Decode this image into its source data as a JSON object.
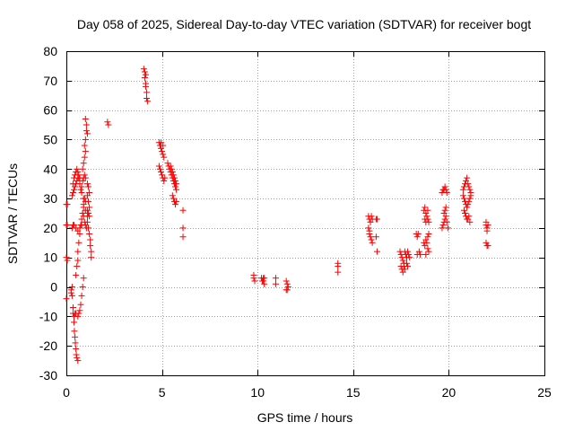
{
  "chart_data": {
    "type": "scatter",
    "title": "Day 058 of 2025, Sidereal Day-to-day VTEC variation (SDTVAR) for receiver bogt",
    "xlabel": "GPS time / hours",
    "ylabel": "SDTVAR / TECUs",
    "xlim": [
      0,
      25
    ],
    "ylim": [
      -30,
      80
    ],
    "xticks": [
      0,
      5,
      10,
      15,
      20,
      25
    ],
    "yticks": [
      -30,
      -20,
      -10,
      0,
      10,
      20,
      30,
      40,
      50,
      60,
      70,
      80
    ],
    "grid": true,
    "marker": "+",
    "colors": {
      "points": "#ff0000",
      "grid": "#a0a0a0",
      "axes": "#000000"
    },
    "series": [
      {
        "name": "SDTVAR",
        "points": [
          [
            0.0,
            28
          ],
          [
            0.05,
            28
          ],
          [
            0.0,
            21
          ],
          [
            0.05,
            21
          ],
          [
            0.0,
            10
          ],
          [
            0.05,
            9
          ],
          [
            0.0,
            -4
          ],
          [
            0.25,
            -1
          ],
          [
            0.25,
            -2
          ],
          [
            0.3,
            0
          ],
          [
            0.3,
            -3
          ],
          [
            0.35,
            -7
          ],
          [
            0.35,
            -9
          ],
          [
            0.4,
            -10
          ],
          [
            0.45,
            -9
          ],
          [
            0.4,
            -12
          ],
          [
            0.42,
            -15
          ],
          [
            0.45,
            -17
          ],
          [
            0.47,
            -19
          ],
          [
            0.5,
            -21
          ],
          [
            0.52,
            -23
          ],
          [
            0.55,
            -24
          ],
          [
            0.6,
            -25
          ],
          [
            0.5,
            -9
          ],
          [
            0.6,
            -10
          ],
          [
            0.65,
            -9
          ],
          [
            0.7,
            -8
          ],
          [
            0.75,
            -6
          ],
          [
            0.8,
            -3
          ],
          [
            0.85,
            0
          ],
          [
            0.9,
            3
          ],
          [
            0.5,
            4
          ],
          [
            0.55,
            7
          ],
          [
            0.6,
            9
          ],
          [
            0.6,
            12
          ],
          [
            0.65,
            15
          ],
          [
            0.7,
            18
          ],
          [
            0.75,
            21
          ],
          [
            0.8,
            23
          ],
          [
            0.85,
            25
          ],
          [
            0.9,
            27
          ],
          [
            0.95,
            30
          ],
          [
            0.3,
            20
          ],
          [
            0.35,
            21
          ],
          [
            0.4,
            21
          ],
          [
            0.5,
            20
          ],
          [
            0.6,
            19
          ],
          [
            0.7,
            20
          ],
          [
            0.8,
            21
          ],
          [
            0.3,
            31
          ],
          [
            0.35,
            32
          ],
          [
            0.4,
            33
          ],
          [
            0.45,
            34
          ],
          [
            0.5,
            35
          ],
          [
            0.55,
            36
          ],
          [
            0.6,
            37
          ],
          [
            0.65,
            38
          ],
          [
            0.7,
            37
          ],
          [
            0.35,
            35
          ],
          [
            0.4,
            37
          ],
          [
            0.45,
            38
          ],
          [
            0.5,
            39
          ],
          [
            0.55,
            40
          ],
          [
            0.6,
            39
          ],
          [
            0.65,
            37
          ],
          [
            0.7,
            35
          ],
          [
            0.75,
            33
          ],
          [
            0.8,
            34
          ],
          [
            0.85,
            36
          ],
          [
            0.9,
            37
          ],
          [
            0.95,
            38
          ],
          [
            1.0,
            37
          ],
          [
            0.8,
            32
          ],
          [
            0.9,
            30
          ],
          [
            1.0,
            29
          ],
          [
            0.85,
            25
          ],
          [
            0.9,
            24
          ],
          [
            0.95,
            22
          ],
          [
            1.0,
            21
          ],
          [
            1.05,
            20
          ],
          [
            0.9,
            28
          ],
          [
            1.0,
            26
          ],
          [
            1.1,
            24
          ],
          [
            0.85,
            40
          ],
          [
            0.9,
            42
          ],
          [
            0.95,
            44
          ],
          [
            1.0,
            57
          ],
          [
            1.05,
            55
          ],
          [
            1.05,
            53
          ],
          [
            1.1,
            52
          ],
          [
            1.0,
            50
          ],
          [
            0.95,
            48
          ],
          [
            1.0,
            46
          ],
          [
            1.1,
            35
          ],
          [
            1.15,
            34
          ],
          [
            1.2,
            32
          ],
          [
            1.1,
            31
          ],
          [
            1.15,
            29
          ],
          [
            1.2,
            27
          ],
          [
            1.1,
            26
          ],
          [
            1.15,
            25
          ],
          [
            1.2,
            24
          ],
          [
            1.1,
            22
          ],
          [
            1.15,
            20
          ],
          [
            1.2,
            18
          ],
          [
            1.25,
            16
          ],
          [
            1.25,
            14
          ],
          [
            1.3,
            12
          ],
          [
            1.3,
            10
          ],
          [
            2.15,
            56
          ],
          [
            2.2,
            55
          ],
          [
            4.05,
            74
          ],
          [
            4.1,
            73
          ],
          [
            4.15,
            72
          ],
          [
            4.1,
            71
          ],
          [
            4.15,
            69
          ],
          [
            4.15,
            68
          ],
          [
            4.2,
            66
          ],
          [
            4.2,
            64
          ],
          [
            4.25,
            63
          ],
          [
            4.85,
            49
          ],
          [
            4.9,
            48
          ],
          [
            4.95,
            47
          ],
          [
            5.0,
            46
          ],
          [
            5.05,
            45
          ],
          [
            5.1,
            44
          ],
          [
            5.05,
            48
          ],
          [
            4.95,
            49
          ],
          [
            4.85,
            41
          ],
          [
            4.9,
            40
          ],
          [
            4.95,
            39
          ],
          [
            5.0,
            38
          ],
          [
            5.05,
            37
          ],
          [
            5.1,
            36
          ],
          [
            5.15,
            37
          ],
          [
            5.3,
            42
          ],
          [
            5.35,
            41
          ],
          [
            5.4,
            40
          ],
          [
            5.45,
            39
          ],
          [
            5.5,
            38
          ],
          [
            5.55,
            37
          ],
          [
            5.6,
            36
          ],
          [
            5.65,
            35
          ],
          [
            5.7,
            34
          ],
          [
            5.75,
            33
          ],
          [
            5.45,
            41
          ],
          [
            5.5,
            40
          ],
          [
            5.55,
            39
          ],
          [
            5.6,
            38
          ],
          [
            5.65,
            37
          ],
          [
            5.7,
            36
          ],
          [
            5.75,
            35
          ],
          [
            5.55,
            31
          ],
          [
            5.6,
            30
          ],
          [
            5.65,
            29
          ],
          [
            5.7,
            28
          ],
          [
            5.75,
            29
          ],
          [
            6.1,
            26
          ],
          [
            6.1,
            20
          ],
          [
            6.1,
            17
          ],
          [
            9.8,
            4
          ],
          [
            9.8,
            3
          ],
          [
            9.85,
            2
          ],
          [
            10.2,
            3
          ],
          [
            10.25,
            2
          ],
          [
            10.3,
            3
          ],
          [
            10.3,
            2
          ],
          [
            10.35,
            1
          ],
          [
            10.35,
            3
          ],
          [
            10.95,
            3
          ],
          [
            10.95,
            1
          ],
          [
            11.5,
            2
          ],
          [
            11.55,
            1
          ],
          [
            11.6,
            0
          ],
          [
            11.5,
            -1
          ],
          [
            11.55,
            -1
          ],
          [
            14.2,
            8
          ],
          [
            14.2,
            7
          ],
          [
            14.2,
            5
          ],
          [
            15.8,
            24
          ],
          [
            15.85,
            23
          ],
          [
            15.9,
            22
          ],
          [
            15.95,
            24
          ],
          [
            16.0,
            23
          ],
          [
            15.8,
            20
          ],
          [
            15.85,
            18
          ],
          [
            15.9,
            17
          ],
          [
            15.95,
            16
          ],
          [
            16.0,
            15
          ],
          [
            15.85,
            19
          ],
          [
            16.2,
            23
          ],
          [
            16.25,
            23
          ],
          [
            16.2,
            17
          ],
          [
            16.25,
            12
          ],
          [
            17.45,
            12
          ],
          [
            17.5,
            11
          ],
          [
            17.55,
            10
          ],
          [
            17.6,
            9
          ],
          [
            17.65,
            8
          ],
          [
            17.7,
            12
          ],
          [
            17.75,
            11
          ],
          [
            17.8,
            10
          ],
          [
            17.85,
            12
          ],
          [
            17.9,
            11
          ],
          [
            17.95,
            10
          ],
          [
            17.5,
            7
          ],
          [
            17.55,
            6
          ],
          [
            17.6,
            5
          ],
          [
            17.65,
            7
          ],
          [
            17.7,
            6
          ],
          [
            17.8,
            8
          ],
          [
            17.85,
            7
          ],
          [
            18.3,
            18
          ],
          [
            18.35,
            17
          ],
          [
            18.4,
            18
          ],
          [
            18.35,
            11
          ],
          [
            18.45,
            12
          ],
          [
            18.5,
            11
          ],
          [
            18.7,
            26
          ],
          [
            18.75,
            27
          ],
          [
            18.8,
            25
          ],
          [
            18.85,
            24
          ],
          [
            18.9,
            23
          ],
          [
            18.95,
            22
          ],
          [
            18.75,
            23
          ],
          [
            18.8,
            22
          ],
          [
            18.9,
            26
          ],
          [
            18.7,
            15
          ],
          [
            18.75,
            14
          ],
          [
            18.8,
            16
          ],
          [
            18.85,
            15
          ],
          [
            18.9,
            13
          ],
          [
            18.95,
            12
          ],
          [
            18.8,
            11
          ],
          [
            18.9,
            17
          ],
          [
            18.95,
            18
          ],
          [
            19.65,
            20
          ],
          [
            19.7,
            21
          ],
          [
            19.75,
            22
          ],
          [
            19.8,
            23
          ],
          [
            19.85,
            24
          ],
          [
            19.9,
            22
          ],
          [
            19.95,
            20
          ],
          [
            19.65,
            32
          ],
          [
            19.7,
            33
          ],
          [
            19.75,
            33
          ],
          [
            19.8,
            34
          ],
          [
            19.85,
            33
          ],
          [
            19.9,
            32
          ],
          [
            19.8,
            26
          ],
          [
            19.75,
            25
          ],
          [
            19.85,
            27
          ],
          [
            20.75,
            33
          ],
          [
            20.8,
            34
          ],
          [
            20.85,
            35
          ],
          [
            20.9,
            36
          ],
          [
            20.95,
            37
          ],
          [
            21.0,
            35
          ],
          [
            21.05,
            34
          ],
          [
            21.1,
            33
          ],
          [
            21.15,
            32
          ],
          [
            20.75,
            31
          ],
          [
            20.8,
            30
          ],
          [
            20.85,
            29
          ],
          [
            20.9,
            28
          ],
          [
            20.95,
            27
          ],
          [
            21.0,
            28
          ],
          [
            21.05,
            29
          ],
          [
            21.1,
            30
          ],
          [
            21.15,
            31
          ],
          [
            20.8,
            26
          ],
          [
            20.85,
            25
          ],
          [
            20.9,
            24
          ],
          [
            20.95,
            23
          ],
          [
            21.0,
            23
          ],
          [
            21.05,
            24
          ],
          [
            21.1,
            22
          ],
          [
            21.95,
            21
          ],
          [
            22.0,
            20
          ],
          [
            21.95,
            22
          ],
          [
            22.05,
            21
          ],
          [
            22.0,
            19
          ],
          [
            21.95,
            15
          ],
          [
            22.0,
            14
          ],
          [
            22.05,
            14
          ]
        ]
      }
    ]
  }
}
